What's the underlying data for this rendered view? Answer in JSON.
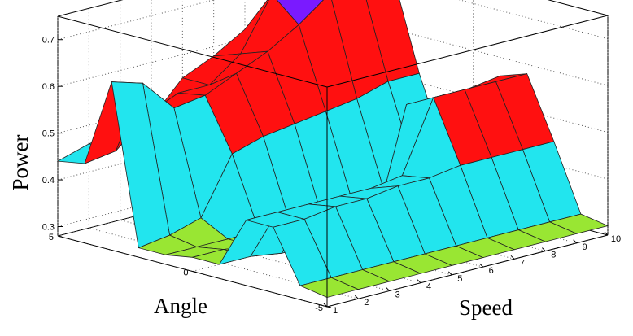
{
  "chart_data": {
    "type": "surface",
    "zlabel": "Power",
    "xlabel": "Angle",
    "ylabel": "Speed",
    "angle_range": [
      -5,
      5
    ],
    "speed_range": [
      1,
      10
    ],
    "zlim": [
      0.28,
      0.75
    ],
    "z_ticks": [
      "0.3",
      "0.4",
      "0.5",
      "0.6",
      "0.7"
    ],
    "angle_ticks": [
      "5",
      "0",
      "-5"
    ],
    "speed_ticks": [
      "1",
      "2",
      "3",
      "4",
      "5",
      "6",
      "7",
      "8",
      "9",
      "10"
    ],
    "grid": true,
    "colors": {
      "green": "#99e633",
      "cyan": "#22e5ee",
      "red": "#ff1010",
      "purple": "#7a1aff",
      "edge": "#222222"
    },
    "angles": [
      -5,
      -4,
      -3,
      -2,
      -1,
      0,
      1,
      2,
      3,
      4,
      5
    ],
    "speeds": [
      1,
      2,
      3,
      4,
      5,
      6,
      7,
      8,
      9,
      10
    ],
    "power": [
      [
        0.3,
        0.3,
        0.3,
        0.3,
        0.3,
        0.3,
        0.3,
        0.3,
        0.3,
        0.3
      ],
      [
        0.31,
        0.31,
        0.31,
        0.31,
        0.31,
        0.31,
        0.31,
        0.31,
        0.31,
        0.31
      ],
      [
        0.42,
        0.42,
        0.43,
        0.43,
        0.44,
        0.44,
        0.45,
        0.45,
        0.45,
        0.45
      ],
      [
        0.42,
        0.42,
        0.42,
        0.42,
        0.42,
        0.43,
        0.58,
        0.58,
        0.58,
        0.58
      ],
      [
        0.31,
        0.31,
        0.3,
        0.3,
        0.3,
        0.31,
        0.55,
        0.55,
        0.55,
        0.56
      ],
      [
        0.31,
        0.31,
        0.3,
        0.3,
        0.3,
        0.3,
        0.3,
        0.32,
        0.32,
        0.32
      ],
      [
        0.3,
        0.3,
        0.3,
        0.3,
        0.3,
        0.3,
        0.31,
        0.32,
        0.35,
        0.36
      ],
      [
        0.3,
        0.31,
        0.33,
        0.45,
        0.47,
        0.48,
        0.49,
        0.5,
        0.52,
        0.52
      ],
      [
        0.64,
        0.62,
        0.55,
        0.56,
        0.59,
        0.62,
        0.66,
        0.71,
        0.72,
        0.72
      ],
      [
        0.45,
        0.46,
        0.52,
        0.55,
        0.55,
        0.6,
        0.71,
        0.73,
        0.73,
        0.73
      ],
      [
        0.44,
        0.46,
        0.47,
        0.48,
        0.55,
        0.58,
        0.62,
        0.64,
        0.66,
        0.67
      ]
    ]
  }
}
